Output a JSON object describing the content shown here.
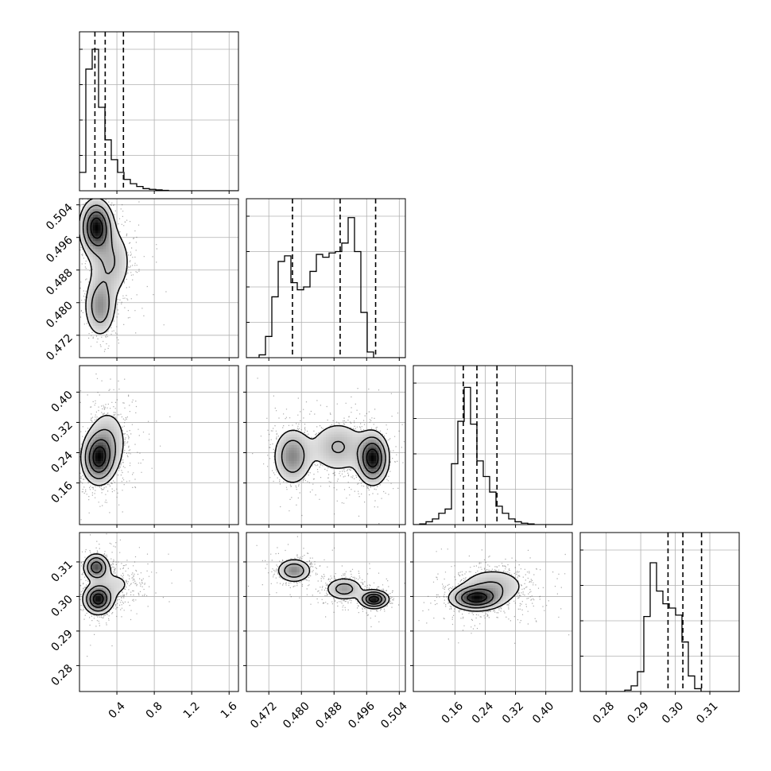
{
  "chart_data": {
    "type": "corner",
    "parameters": 4,
    "grid": true,
    "quantile_lines": "dashed",
    "colors": {
      "ink": "#000000",
      "grid": "#b0b0b0",
      "background": "#ffffff"
    },
    "axes": {
      "p1": {
        "range": [
          0.0,
          1.7
        ],
        "ticks": [
          0.4,
          0.8,
          1.2,
          1.6
        ],
        "tick_labels": [
          "0.4",
          "0.8",
          "1.2",
          "1.6"
        ]
      },
      "p2": {
        "range": [
          0.4665,
          0.5055
        ],
        "ticks": [
          0.472,
          0.48,
          0.488,
          0.496,
          0.504
        ],
        "tick_labels": [
          "0.472",
          "0.480",
          "0.488",
          "0.496",
          "0.504"
        ]
      },
      "p3": {
        "range": [
          0.05,
          0.47
        ],
        "ticks": [
          0.16,
          0.24,
          0.32,
          0.4
        ],
        "tick_labels": [
          "0.16",
          "0.24",
          "0.32",
          "0.40"
        ]
      },
      "p4": {
        "range": [
          0.2725,
          0.3185
        ],
        "ticks": [
          0.28,
          0.29,
          0.3,
          0.31
        ],
        "tick_labels": [
          "0.28",
          "0.29",
          "0.30",
          "0.31"
        ]
      }
    },
    "histograms": [
      {
        "param": "p1",
        "bins": {
          "start": 0.0,
          "width": 0.068
        },
        "values": [
          0.13,
          0.86,
          1.0,
          0.59,
          0.36,
          0.22,
          0.13,
          0.08,
          0.05,
          0.03,
          0.015,
          0.01,
          0.006,
          0.003,
          0.0,
          0.0,
          0.0,
          0.0,
          0.0,
          0.0,
          0.0,
          0.0,
          0.0,
          0.0,
          0.0
        ],
        "quantiles": [
          0.165,
          0.275,
          0.47
        ]
      },
      {
        "param": "p2",
        "bins": {
          "start": 0.4665,
          "width": 0.00156
        },
        "values": [
          0.0,
          0.0,
          0.02,
          0.15,
          0.43,
          0.68,
          0.72,
          0.53,
          0.48,
          0.5,
          0.61,
          0.73,
          0.71,
          0.74,
          0.75,
          0.81,
          0.99,
          0.75,
          0.32,
          0.04,
          0.0,
          0.0,
          0.0,
          0.0,
          0.0
        ],
        "quantiles": [
          0.4778,
          0.4895,
          0.4982
        ]
      },
      {
        "param": "p3",
        "bins": {
          "start": 0.05,
          "width": 0.0168
        },
        "values": [
          0.0,
          0.005,
          0.02,
          0.04,
          0.08,
          0.11,
          0.43,
          0.73,
          0.97,
          0.71,
          0.45,
          0.34,
          0.23,
          0.13,
          0.08,
          0.04,
          0.02,
          0.01,
          0.005,
          0.0,
          0.0,
          0.0,
          0.0,
          0.0,
          0.0
        ],
        "quantiles": [
          0.182,
          0.218,
          0.271
        ]
      },
      {
        "param": "p4",
        "bins": {
          "start": 0.2725,
          "width": 0.00184
        },
        "values": [
          0.0,
          0.0,
          0.0,
          0.0,
          0.0,
          0.0,
          0.0,
          0.01,
          0.04,
          0.14,
          0.53,
          0.91,
          0.71,
          0.62,
          0.59,
          0.54,
          0.35,
          0.11,
          0.02,
          0.0,
          0.0,
          0.0,
          0.0,
          0.0,
          0.0
        ],
        "quantiles": [
          0.2979,
          0.3022,
          0.3076
        ]
      }
    ],
    "joint_distributions": [
      {
        "x": "p1",
        "y": "p2",
        "modes": [
          {
            "x": 0.18,
            "y": 0.4985,
            "weight": 0.45,
            "sx": 0.09,
            "sy": 0.0035
          },
          {
            "x": 0.22,
            "y": 0.479,
            "weight": 0.25,
            "sx": 0.09,
            "sy": 0.004
          },
          {
            "x": 0.33,
            "y": 0.49,
            "weight": 0.3,
            "sx": 0.13,
            "sy": 0.005
          }
        ]
      },
      {
        "x": "p1",
        "y": "p3",
        "modes": [
          {
            "x": 0.2,
            "y": 0.225,
            "weight": 0.6,
            "sx": 0.09,
            "sy": 0.035
          },
          {
            "x": 0.3,
            "y": 0.27,
            "weight": 0.4,
            "sx": 0.12,
            "sy": 0.05
          }
        ]
      },
      {
        "x": "p1",
        "y": "p4",
        "modes": [
          {
            "x": 0.2,
            "y": 0.2992,
            "weight": 0.5,
            "sx": 0.08,
            "sy": 0.0022
          },
          {
            "x": 0.18,
            "y": 0.3085,
            "weight": 0.3,
            "sx": 0.07,
            "sy": 0.002
          },
          {
            "x": 0.38,
            "y": 0.3035,
            "weight": 0.2,
            "sx": 0.15,
            "sy": 0.003
          }
        ]
      },
      {
        "x": "p2",
        "y": "p3",
        "modes": [
          {
            "x": 0.4975,
            "y": 0.225,
            "weight": 0.4,
            "sx": 0.002,
            "sy": 0.035
          },
          {
            "x": 0.4778,
            "y": 0.23,
            "weight": 0.3,
            "sx": 0.0025,
            "sy": 0.04
          },
          {
            "x": 0.489,
            "y": 0.255,
            "weight": 0.3,
            "sx": 0.004,
            "sy": 0.04
          }
        ]
      },
      {
        "x": "p2",
        "y": "p4",
        "modes": [
          {
            "x": 0.4782,
            "y": 0.3075,
            "weight": 0.33,
            "sx": 0.0022,
            "sy": 0.0018
          },
          {
            "x": 0.4905,
            "y": 0.3022,
            "weight": 0.3,
            "sx": 0.0025,
            "sy": 0.0018
          },
          {
            "x": 0.4978,
            "y": 0.2992,
            "weight": 0.37,
            "sx": 0.0018,
            "sy": 0.0013
          }
        ]
      },
      {
        "x": "p3",
        "y": "p4",
        "modes": [
          {
            "x": 0.215,
            "y": 0.2995,
            "weight": 0.55,
            "sx": 0.035,
            "sy": 0.0018
          },
          {
            "x": 0.26,
            "y": 0.303,
            "weight": 0.45,
            "sx": 0.05,
            "sy": 0.003
          }
        ]
      }
    ]
  }
}
